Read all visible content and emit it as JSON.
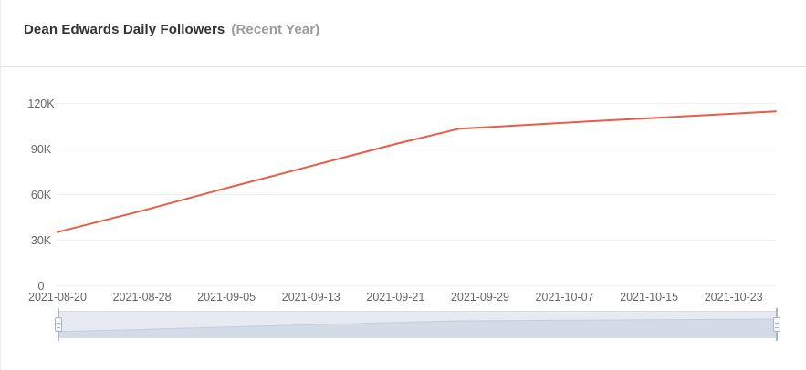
{
  "header": {
    "title": "Dean Edwards Daily Followers",
    "subtitle": "(Recent Year)"
  },
  "chart_data": {
    "type": "line",
    "title": "Dean Edwards Daily Followers (Recent Year)",
    "series": [
      {
        "name": "Daily Followers",
        "x": [
          "2021-08-20",
          "2021-08-28",
          "2021-09-05",
          "2021-09-13",
          "2021-09-21",
          "2021-09-27",
          "2021-10-07",
          "2021-10-15",
          "2021-10-23",
          "2021-10-27"
        ],
        "y": [
          35000,
          49000,
          64000,
          78500,
          93000,
          103000,
          107000,
          110000,
          113000,
          114500
        ]
      }
    ],
    "x_ticks": [
      "2021-08-20",
      "2021-08-28",
      "2021-09-05",
      "2021-09-13",
      "2021-09-21",
      "2021-09-29",
      "2021-10-07",
      "2021-10-15",
      "2021-10-23"
    ],
    "y_ticks": [
      {
        "value": 0,
        "label": "0"
      },
      {
        "value": 30000,
        "label": "30K"
      },
      {
        "value": 60000,
        "label": "60K"
      },
      {
        "value": 90000,
        "label": "90K"
      },
      {
        "value": 120000,
        "label": "120K"
      }
    ],
    "ylim": [
      0,
      132000
    ],
    "xlabel": "",
    "ylabel": "",
    "grid": true,
    "legend": "none",
    "line_color": "#e95d47",
    "grid_color": "#eeeeee",
    "tick_label_color": "#666666"
  },
  "slider": {
    "track_color": "#e7ebf1",
    "shadow_fill_color": "#d2dbe6",
    "shadow_line_color": "#c3cedd"
  }
}
